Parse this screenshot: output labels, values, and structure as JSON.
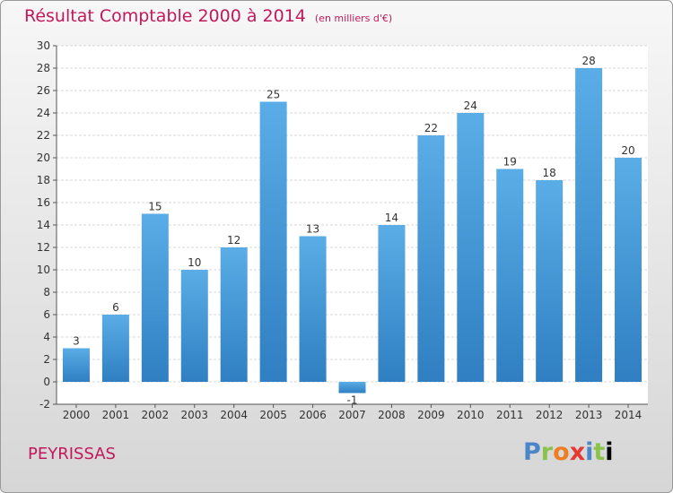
{
  "header": {
    "title": "Résultat Comptable 2000 à 2014",
    "subtitle": "(en milliers d'€)"
  },
  "footer": {
    "town": "PEYRISSAS",
    "brand": [
      "P",
      "r",
      "o",
      "x",
      "i",
      "t",
      "i"
    ]
  },
  "colors": {
    "title": "#c2185b",
    "bar_light": "#5aade6",
    "bar_dark": "#2f7fc2"
  },
  "chart_data": {
    "type": "bar",
    "title": "Résultat Comptable 2000 à 2014",
    "subtitle": "(en milliers d'€)",
    "categories": [
      "2000",
      "2001",
      "2002",
      "2003",
      "2004",
      "2005",
      "2006",
      "2007",
      "2008",
      "2009",
      "2010",
      "2011",
      "2012",
      "2013",
      "2014"
    ],
    "values": [
      3,
      6,
      15,
      10,
      12,
      25,
      13,
      -1,
      14,
      22,
      24,
      19,
      18,
      28,
      20
    ],
    "ylim": [
      -2,
      30
    ],
    "yticks": [
      -2,
      0,
      2,
      4,
      6,
      8,
      10,
      12,
      14,
      16,
      18,
      20,
      22,
      24,
      26,
      28,
      30
    ],
    "grid": true,
    "xlabel": "",
    "ylabel": ""
  }
}
